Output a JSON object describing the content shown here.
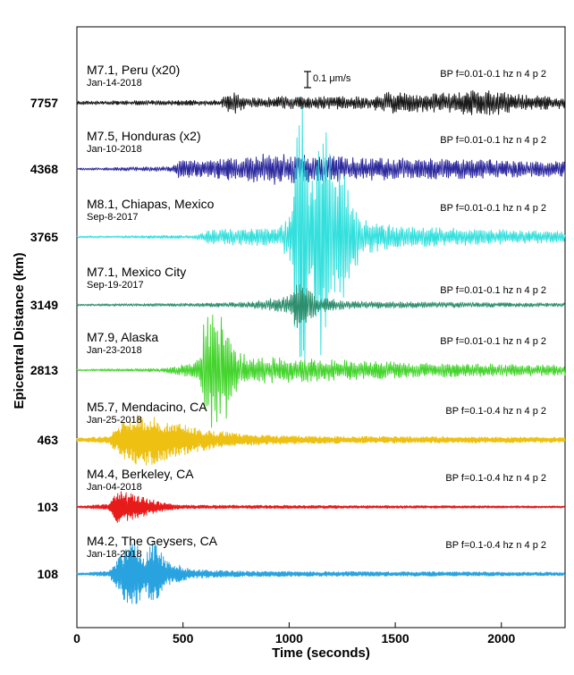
{
  "chart_data": {
    "type": "line",
    "xlabel": "Time (seconds)",
    "ylabel": "Epicentral Distance (km)",
    "xlim": [
      0,
      2300
    ],
    "xticks": [
      0,
      500,
      1000,
      1500,
      2000
    ],
    "scale_bar_label": "0.1 μm/s",
    "series": [
      {
        "name": "M7.1, Peru (x20)",
        "date": "Jan-14-2018",
        "distance": "7757",
        "filter": "BP f=0.01-0.1 hz n 4 p 2",
        "color": "#1a1a1a",
        "envelope": [
          [
            0,
            2
          ],
          [
            680,
            3
          ],
          [
            700,
            10
          ],
          [
            750,
            12
          ],
          [
            800,
            5
          ],
          [
            1000,
            8
          ],
          [
            1100,
            6
          ],
          [
            1200,
            8
          ],
          [
            1380,
            6
          ],
          [
            1450,
            12
          ],
          [
            1650,
            10
          ],
          [
            1950,
            15
          ],
          [
            2050,
            10
          ],
          [
            2300,
            6
          ]
        ]
      },
      {
        "name": "M7.5, Honduras (x2)",
        "date": "Jan-10-2018",
        "distance": "4368",
        "filter": "BP f=0.01-0.1 hz n 4 p 2",
        "color": "#2d2a9e",
        "envelope": [
          [
            0,
            1
          ],
          [
            450,
            3
          ],
          [
            480,
            10
          ],
          [
            600,
            9
          ],
          [
            700,
            12
          ],
          [
            800,
            13
          ],
          [
            900,
            18
          ],
          [
            1000,
            16
          ],
          [
            1100,
            16
          ],
          [
            1300,
            13
          ],
          [
            1600,
            12
          ],
          [
            2000,
            10
          ],
          [
            2300,
            8
          ]
        ]
      },
      {
        "name": "M8.1, Chiapas, Mexico",
        "date": "Sep-8-2017",
        "distance": "3765",
        "filter": "BP f=0.01-0.1 hz n 4 p 2",
        "color": "#33e0dd",
        "envelope": [
          [
            0,
            1
          ],
          [
            550,
            2
          ],
          [
            620,
            8
          ],
          [
            800,
            10
          ],
          [
            950,
            9
          ],
          [
            1010,
            30
          ],
          [
            1050,
            220
          ],
          [
            1100,
            60
          ],
          [
            1150,
            140
          ],
          [
            1200,
            100
          ],
          [
            1280,
            60
          ],
          [
            1350,
            20
          ],
          [
            1500,
            12
          ],
          [
            1900,
            9
          ],
          [
            2300,
            6
          ]
        ]
      },
      {
        "name": "M7.1, Mexico City",
        "date": "Sep-19-2017",
        "distance": "3149",
        "filter": "BP f=0.01-0.1 hz n 4 p 2",
        "color": "#2e8f6e",
        "envelope": [
          [
            0,
            1
          ],
          [
            600,
            2
          ],
          [
            800,
            3
          ],
          [
            1000,
            10
          ],
          [
            1040,
            30
          ],
          [
            1080,
            20
          ],
          [
            1150,
            8
          ],
          [
            1300,
            4
          ],
          [
            2300,
            2
          ]
        ]
      },
      {
        "name": "M7.9, Alaska",
        "date": "Jan-23-2018",
        "distance": "2813",
        "filter": "BP f=0.01-0.1 hz n 4 p 2",
        "color": "#45d42e",
        "envelope": [
          [
            0,
            1
          ],
          [
            400,
            2
          ],
          [
            500,
            6
          ],
          [
            580,
            12
          ],
          [
            600,
            60
          ],
          [
            650,
            70
          ],
          [
            700,
            60
          ],
          [
            740,
            30
          ],
          [
            800,
            15
          ],
          [
            1000,
            14
          ],
          [
            1200,
            12
          ],
          [
            1600,
            8
          ],
          [
            2300,
            6
          ]
        ]
      },
      {
        "name": "M5.7, Mendacino, CA",
        "date": "Jan-25-2018",
        "distance": "463",
        "filter": "BP f=0.1-0.4 hz n 4 p 2",
        "color": "#edc012",
        "envelope": [
          [
            0,
            2
          ],
          [
            150,
            4
          ],
          [
            200,
            18
          ],
          [
            280,
            30
          ],
          [
            350,
            28
          ],
          [
            450,
            20
          ],
          [
            600,
            12
          ],
          [
            800,
            6
          ],
          [
            1100,
            4
          ],
          [
            2300,
            3
          ]
        ]
      },
      {
        "name": "M4.4, Berkeley, CA",
        "date": "Jan-04-2018",
        "distance": "103",
        "filter": "BP f=0.1-0.4 hz n 4 p 2",
        "color": "#e81b1b",
        "envelope": [
          [
            0,
            1
          ],
          [
            150,
            3
          ],
          [
            190,
            18
          ],
          [
            240,
            16
          ],
          [
            300,
            12
          ],
          [
            400,
            5
          ],
          [
            500,
            2
          ],
          [
            2300,
            1
          ]
        ]
      },
      {
        "name": "M4.2, The Geysers, CA",
        "date": "Jan-18-2018",
        "distance": "108",
        "filter": "BP f=0.1-0.4 hz n 4 p 2",
        "color": "#29a3e0",
        "envelope": [
          [
            0,
            1
          ],
          [
            150,
            3
          ],
          [
            200,
            20
          ],
          [
            260,
            45
          ],
          [
            320,
            20
          ],
          [
            360,
            40
          ],
          [
            420,
            15
          ],
          [
            550,
            5
          ],
          [
            800,
            3
          ],
          [
            2300,
            2
          ]
        ]
      }
    ]
  }
}
